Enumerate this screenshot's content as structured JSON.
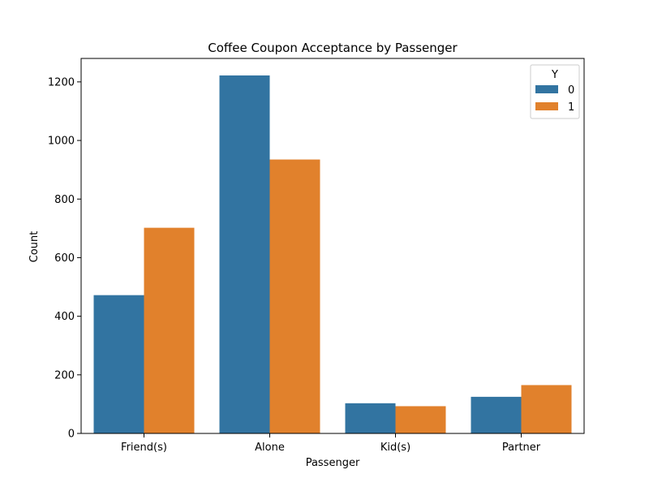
{
  "chart_data": {
    "type": "bar",
    "title": "Coffee Coupon Acceptance by Passenger",
    "xlabel": "Passenger",
    "ylabel": "Count",
    "categories": [
      "Friend(s)",
      "Alone",
      "Kid(s)",
      "Partner"
    ],
    "series": [
      {
        "name": "0",
        "values": [
          472,
          1222,
          103,
          125
        ],
        "color": "#3274a1"
      },
      {
        "name": "1",
        "values": [
          702,
          935,
          93,
          165
        ],
        "color": "#e1812c"
      }
    ],
    "ylim": [
      0,
      1280
    ],
    "yticks": [
      0,
      200,
      400,
      600,
      800,
      1000,
      1200
    ],
    "legend": {
      "title": "Y",
      "position": "top-right"
    },
    "grid": false
  }
}
